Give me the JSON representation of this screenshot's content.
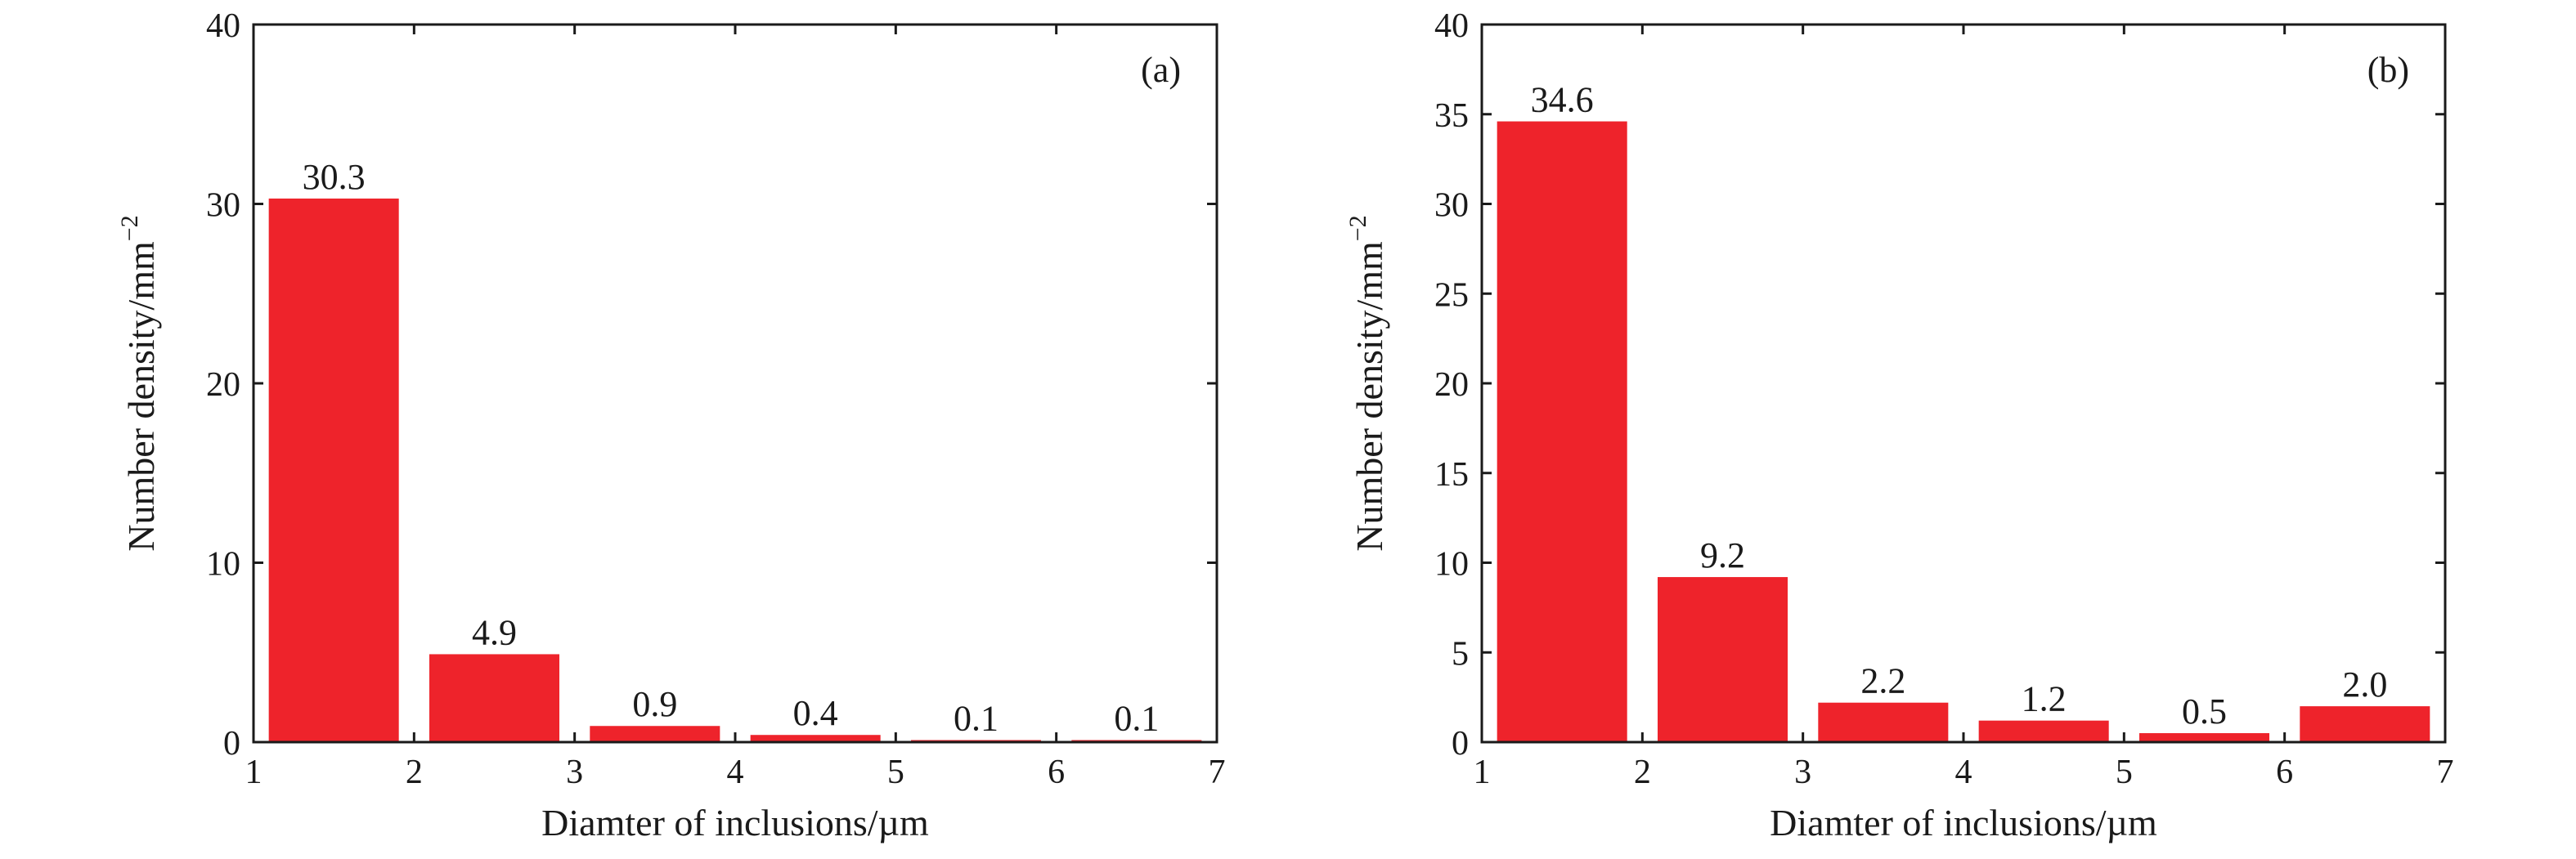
{
  "chart_data": [
    {
      "type": "bar",
      "panel_label": "(a)",
      "title": "",
      "xlabel": "Diamter of inclusions/µm",
      "ylabel": "Number density/mm",
      "ylabel_superscript": "−2",
      "xlim": [
        1,
        7
      ],
      "ylim": [
        0,
        40
      ],
      "x_ticks": [
        1,
        2,
        3,
        4,
        5,
        6,
        7
      ],
      "y_ticks": [
        0,
        10,
        20,
        30,
        40
      ],
      "bins": [
        [
          1,
          2
        ],
        [
          2,
          3
        ],
        [
          3,
          4
        ],
        [
          4,
          5
        ],
        [
          5,
          6
        ],
        [
          6,
          7
        ]
      ],
      "values": [
        30.3,
        4.9,
        0.9,
        0.4,
        0.1,
        0.1
      ],
      "value_labels": [
        "30.3",
        "4.9",
        "0.9",
        "0.4",
        "0.1",
        "0.1"
      ],
      "bar_color": "#ee232b",
      "grid": false,
      "legend": "none"
    },
    {
      "type": "bar",
      "panel_label": "(b)",
      "title": "",
      "xlabel": "Diamter of inclusions/µm",
      "ylabel": "Number density/mm",
      "ylabel_superscript": "−2",
      "xlim": [
        1,
        7
      ],
      "ylim": [
        0,
        40
      ],
      "x_ticks": [
        1,
        2,
        3,
        4,
        5,
        6,
        7
      ],
      "y_ticks": [
        0,
        5,
        10,
        15,
        20,
        25,
        30,
        35,
        40
      ],
      "bins": [
        [
          1,
          2
        ],
        [
          2,
          3
        ],
        [
          3,
          4
        ],
        [
          4,
          5
        ],
        [
          5,
          6
        ],
        [
          6,
          7
        ]
      ],
      "values": [
        34.6,
        9.2,
        2.2,
        1.2,
        0.5,
        2.0
      ],
      "value_labels": [
        "34.6",
        "9.2",
        "2.2",
        "1.2",
        "0.5",
        "2.0"
      ],
      "bar_color": "#ee232b",
      "grid": false,
      "legend": "none"
    }
  ]
}
